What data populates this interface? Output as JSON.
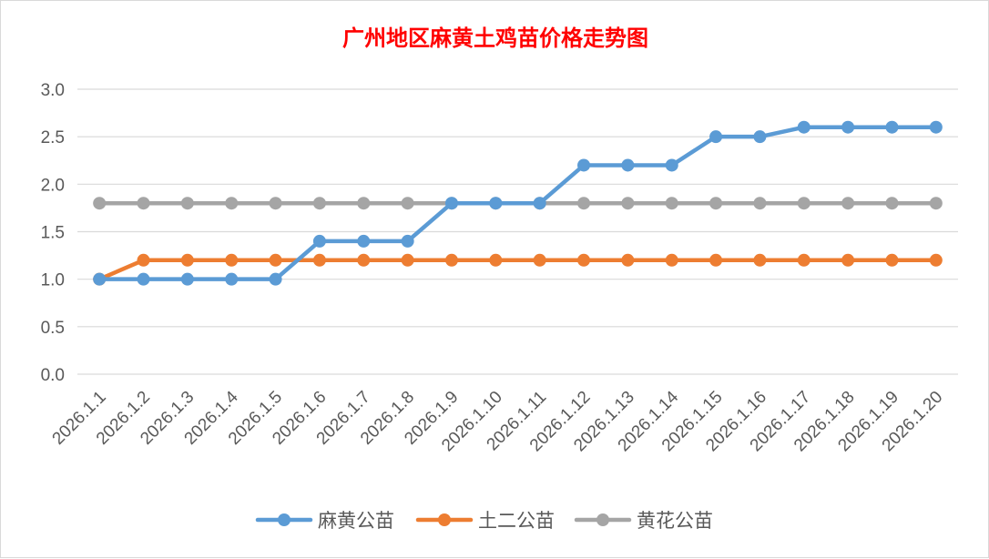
{
  "chart_data": {
    "type": "line",
    "title": "广州地区麻黄土鸡苗价格走势图",
    "xlabel": "",
    "ylabel": "",
    "categories": [
      "2026.1.1",
      "2026.1.2",
      "2026.1.3",
      "2026.1.4",
      "2026.1.5",
      "2026.1.6",
      "2026.1.7",
      "2026.1.8",
      "2026.1.9",
      "2026.1.10",
      "2026.1.11",
      "2026.1.12",
      "2026.1.13",
      "2026.1.14",
      "2026.1.15",
      "2026.1.16",
      "2026.1.17",
      "2026.1.18",
      "2026.1.19",
      "2026.1.20"
    ],
    "ylim": [
      0,
      3
    ],
    "yticks": [
      "0.0",
      "0.5",
      "1.0",
      "1.5",
      "2.0",
      "2.5",
      "3.0"
    ],
    "grid": true,
    "legend_position": "bottom",
    "series": [
      {
        "name": "麻黄公苗",
        "color": "#5b9bd5",
        "values": [
          1.0,
          1.0,
          1.0,
          1.0,
          1.0,
          1.4,
          1.4,
          1.4,
          1.8,
          1.8,
          1.8,
          2.2,
          2.2,
          2.2,
          2.5,
          2.5,
          2.6,
          2.6,
          2.6,
          2.6
        ]
      },
      {
        "name": "土二公苗",
        "color": "#ed7d31",
        "values": [
          1.0,
          1.2,
          1.2,
          1.2,
          1.2,
          1.2,
          1.2,
          1.2,
          1.2,
          1.2,
          1.2,
          1.2,
          1.2,
          1.2,
          1.2,
          1.2,
          1.2,
          1.2,
          1.2,
          1.2
        ]
      },
      {
        "name": "黄花公苗",
        "color": "#a5a5a5",
        "values": [
          1.8,
          1.8,
          1.8,
          1.8,
          1.8,
          1.8,
          1.8,
          1.8,
          1.8,
          1.8,
          1.8,
          1.8,
          1.8,
          1.8,
          1.8,
          1.8,
          1.8,
          1.8,
          1.8,
          1.8
        ]
      }
    ]
  }
}
